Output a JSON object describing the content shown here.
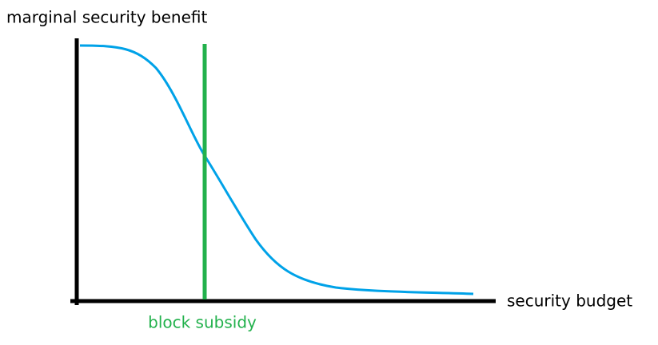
{
  "y_axis_label": "marginal security benefit",
  "x_axis_label": "security budget",
  "annotation": "block subsidy"
}
